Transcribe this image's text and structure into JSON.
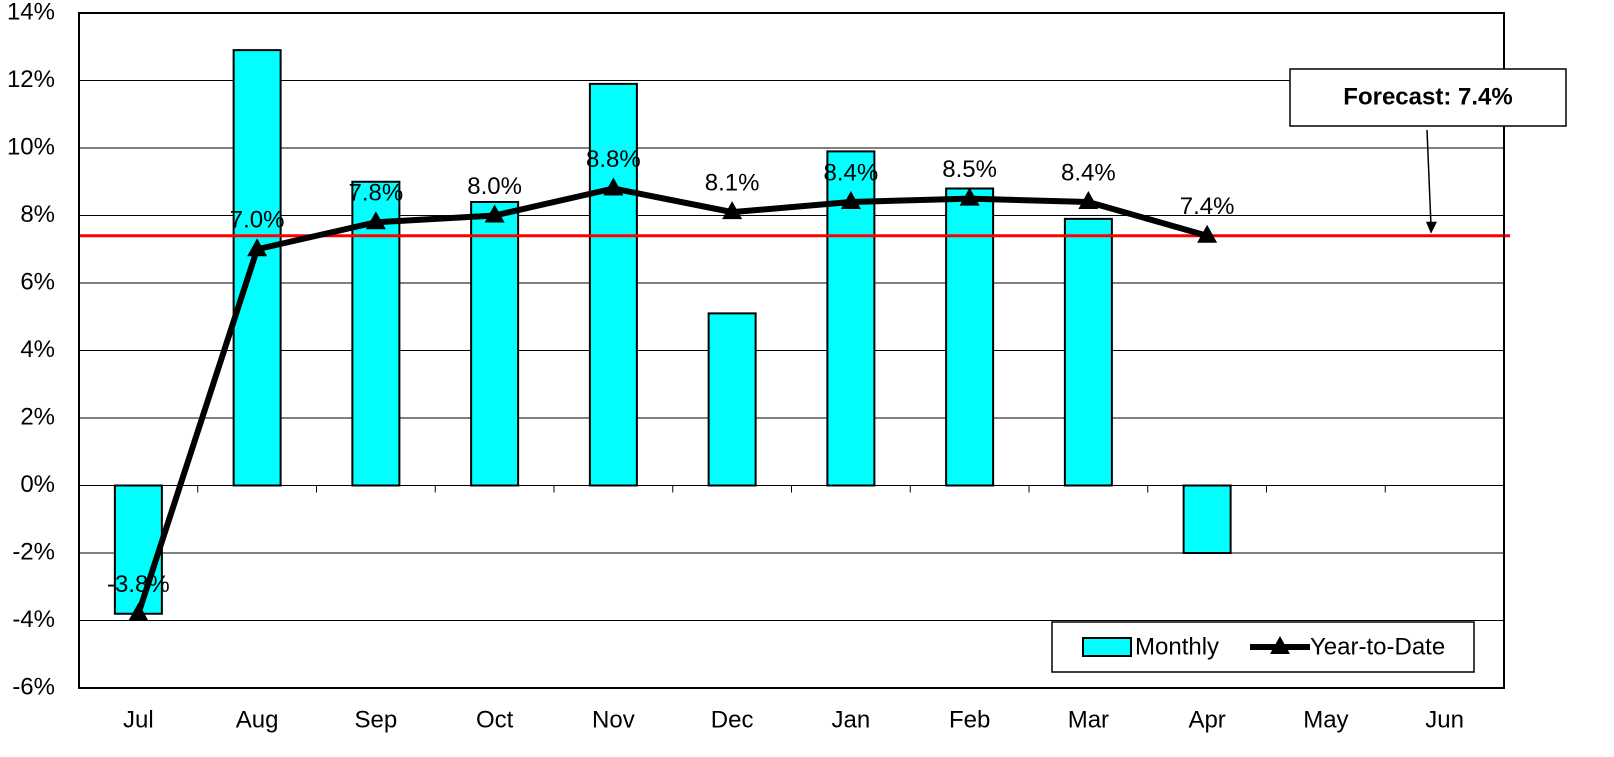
{
  "chart_data": {
    "type": "bar-line",
    "categories": [
      "Jul",
      "Aug",
      "Sep",
      "Oct",
      "Nov",
      "Dec",
      "Jan",
      "Feb",
      "Mar",
      "Apr",
      "May",
      "Jun"
    ],
    "series": [
      {
        "name": "Monthly",
        "type": "bar",
        "color": "#00ffff",
        "values": [
          -3.8,
          12.9,
          9.0,
          8.4,
          11.9,
          5.1,
          9.9,
          8.8,
          7.9,
          -2.0,
          null,
          null
        ]
      },
      {
        "name": "Year-to-Date",
        "type": "line",
        "color": "#000000",
        "values": [
          -3.8,
          7.0,
          7.8,
          8.0,
          8.8,
          8.1,
          8.4,
          8.5,
          8.4,
          7.4,
          null,
          null
        ],
        "value_labels": [
          "-3.8%",
          "7.0%",
          "7.8%",
          "8.0%",
          "8.8%",
          "8.1%",
          "8.4%",
          "8.5%",
          "8.4%",
          "7.4%",
          null,
          null
        ]
      }
    ],
    "forecast": {
      "value": 7.4,
      "label": "Forecast: 7.4%",
      "color": "#ff0000"
    },
    "ylim": [
      -6,
      14
    ],
    "yticks": [
      {
        "value": -6,
        "label": "-6%"
      },
      {
        "value": -4,
        "label": "-4%"
      },
      {
        "value": -2,
        "label": "-2%"
      },
      {
        "value": 0,
        "label": "0%"
      },
      {
        "value": 2,
        "label": "2%"
      },
      {
        "value": 4,
        "label": "4%"
      },
      {
        "value": 6,
        "label": "6%"
      },
      {
        "value": 8,
        "label": "8%"
      },
      {
        "value": 10,
        "label": "10%"
      },
      {
        "value": 12,
        "label": "12%"
      },
      {
        "value": 14,
        "label": "14%"
      }
    ],
    "grid": true,
    "legend": "lower right"
  }
}
